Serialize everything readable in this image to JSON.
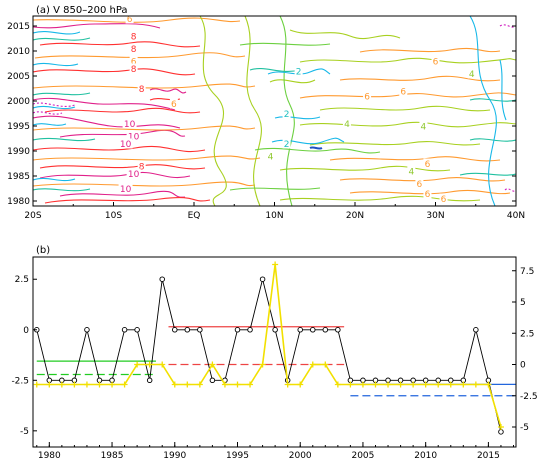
{
  "chart_data": [
    {
      "type": "heatmap",
      "title": "(a) V 850–200 hPa",
      "x_ticks": [
        "20S",
        "10S",
        "EQ",
        "10N",
        "20N",
        "30N",
        "40N"
      ],
      "y_ticks": [
        "1980",
        "1985",
        "1990",
        "1995",
        "2000",
        "2005",
        "2010",
        "2015"
      ],
      "x_range": [
        -20,
        40
      ],
      "y_range": [
        1979,
        2017
      ],
      "contour_labels": [
        {
          "text": "6",
          "lat": -8,
          "year": 2016.5
        },
        {
          "text": "8",
          "lat": -7.5,
          "year": 2013
        },
        {
          "text": "8",
          "lat": -7.5,
          "year": 2010.5
        },
        {
          "text": "6",
          "lat": -7.5,
          "year": 2008
        },
        {
          "text": "8",
          "lat": -7.5,
          "year": 2006.5
        },
        {
          "text": "8",
          "lat": -6.5,
          "year": 2002.5
        },
        {
          "text": "6",
          "lat": -2.5,
          "year": 1999.5
        },
        {
          "text": "10",
          "lat": -8,
          "year": 1995.5
        },
        {
          "text": "10",
          "lat": -7.5,
          "year": 1993
        },
        {
          "text": "10",
          "lat": -8.5,
          "year": 1991.5
        },
        {
          "text": "8",
          "lat": -6.5,
          "year": 1987
        },
        {
          "text": "10",
          "lat": -7.5,
          "year": 1985.5
        },
        {
          "text": "10",
          "lat": -8.5,
          "year": 1982.5
        },
        {
          "text": "2",
          "lat": 13,
          "year": 2006
        },
        {
          "text": "6",
          "lat": 30,
          "year": 2008
        },
        {
          "text": "4",
          "lat": 34.5,
          "year": 2005.5
        },
        {
          "text": "6",
          "lat": 26,
          "year": 2002
        },
        {
          "text": "6",
          "lat": 21.5,
          "year": 2001
        },
        {
          "text": "2",
          "lat": 11.5,
          "year": 1997.5
        },
        {
          "text": "4",
          "lat": 19,
          "year": 1995.5
        },
        {
          "text": "4",
          "lat": 28.5,
          "year": 1995
        },
        {
          "text": "2",
          "lat": 11.5,
          "year": 1991.5
        },
        {
          "text": "4",
          "lat": 9.5,
          "year": 1989
        },
        {
          "text": "6",
          "lat": 29,
          "year": 1987.5
        },
        {
          "text": "4",
          "lat": 27,
          "year": 1986
        },
        {
          "text": "6",
          "lat": 28,
          "year": 1983.5
        },
        {
          "text": "6",
          "lat": 31,
          "year": 1980.5
        },
        {
          "text": "6",
          "lat": 29,
          "year": 1981.5
        }
      ]
    },
    {
      "type": "line",
      "title": "(b)",
      "x_ticks": [
        "1980",
        "1985",
        "1990",
        "1995",
        "2000",
        "2005",
        "2010",
        "2015"
      ],
      "y_left_ticks": [
        "2.5",
        "0",
        "-2.5",
        "-5"
      ],
      "y_right_ticks": [
        "7.5",
        "5",
        "2.5",
        "0",
        "-2.5",
        "-5"
      ],
      "xlim": [
        1978.7,
        2017.2
      ],
      "ylim_left": [
        -5.8,
        3.6
      ],
      "ylim_right": [
        -6.6,
        8.6
      ],
      "series": [
        {
          "axis": "left",
          "color": "#000000",
          "marker": "circle",
          "x": [
            1979,
            1980,
            1981,
            1982,
            1983,
            1984,
            1985,
            1986,
            1987,
            1988,
            1989,
            1990,
            1991,
            1992,
            1993,
            1994,
            1995,
            1996,
            1997,
            1998,
            1999,
            2000,
            2001,
            2002,
            2003,
            2004,
            2005,
            2006,
            2007,
            2008,
            2009,
            2010,
            2011,
            2012,
            2013,
            2014,
            2015,
            2016
          ],
          "values": [
            0,
            -2.5,
            -2.5,
            -2.5,
            0,
            -2.5,
            -2.5,
            0,
            0,
            -2.5,
            2.5,
            0,
            0,
            0,
            -2.5,
            -2.5,
            0,
            0,
            2.5,
            0,
            -2.5,
            0,
            0,
            0,
            0,
            -2.5,
            -2.5,
            -2.5,
            -2.5,
            -2.5,
            -2.5,
            -2.5,
            -2.5,
            -2.5,
            -2.5,
            0,
            -2.5,
            -5.05
          ]
        },
        {
          "axis": "right",
          "color": "#f2e000",
          "marker": "plus",
          "x": [
            1979,
            1980,
            1981,
            1982,
            1983,
            1984,
            1985,
            1986,
            1987,
            1988,
            1989,
            1990,
            1991,
            1992,
            1993,
            1994,
            1995,
            1996,
            1997,
            1998,
            1999,
            2000,
            2001,
            2002,
            2003,
            2004,
            2005,
            2006,
            2007,
            2008,
            2009,
            2010,
            2011,
            2012,
            2013,
            2014,
            2015,
            2016
          ],
          "values": [
            -1.6,
            -1.6,
            -1.6,
            -1.6,
            -1.6,
            -1.6,
            -1.6,
            -1.6,
            0,
            0,
            0,
            -1.6,
            -1.6,
            -1.6,
            0,
            -1.6,
            -1.6,
            -1.6,
            0,
            8,
            -1.6,
            -1.6,
            0,
            0,
            -1.6,
            -1.6,
            -1.6,
            -1.6,
            -1.6,
            -1.6,
            -1.6,
            -1.6,
            -1.6,
            -1.6,
            -1.6,
            -1.6,
            -1.6,
            -5
          ]
        }
      ],
      "means": [
        {
          "axis": "left",
          "from": 1979,
          "to": 1988.5,
          "value": -1.55,
          "color": "#22cc22",
          "style": "solid"
        },
        {
          "axis": "right",
          "from": 1979,
          "to": 1988.5,
          "value": -0.8,
          "color": "#22cc22",
          "style": "dashed"
        },
        {
          "axis": "left",
          "from": 1989.5,
          "to": 2003.5,
          "value": 0.15,
          "color": "#ee4444",
          "style": "solid"
        },
        {
          "axis": "right",
          "from": 1989.5,
          "to": 2003.5,
          "value": 0,
          "color": "#ee4444",
          "style": "dashed"
        },
        {
          "axis": "left",
          "from": 2004,
          "to": 2017.2,
          "value": -2.7,
          "color": "#2266dd",
          "style": "solid"
        },
        {
          "axis": "right",
          "from": 2004,
          "to": 2017.2,
          "value": -2.5,
          "color": "#2266dd",
          "style": "dashed"
        }
      ]
    }
  ]
}
